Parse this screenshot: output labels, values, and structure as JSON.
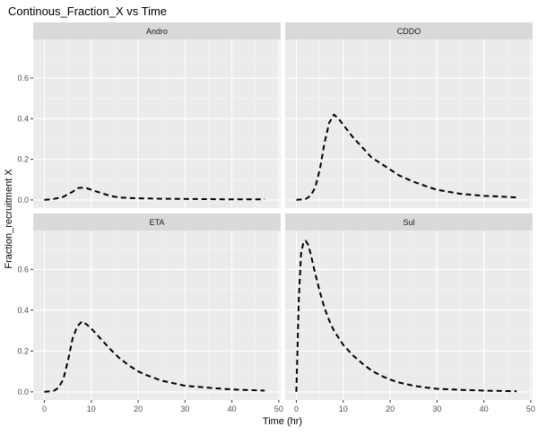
{
  "chart_data": {
    "type": "line",
    "title": "Continous_Fraction_X vs Time",
    "xlabel": "Time (hr)",
    "ylabel": "Fraction_recruitment X",
    "xlim": [
      -2.4,
      50.4
    ],
    "ylim": [
      -0.04,
      0.79
    ],
    "x_ticks": [
      0,
      10,
      20,
      30,
      40,
      50
    ],
    "y_ticks": [
      0.0,
      0.2,
      0.4,
      0.6
    ],
    "y_tick_labels": [
      "0.0",
      "0.2",
      "0.4",
      "0.6"
    ],
    "x_tick_labels": [
      "0",
      "10",
      "20",
      "30",
      "40",
      "50"
    ],
    "grid": true,
    "line_style": "dashed",
    "line_color": "#000000",
    "panel_background": "#ebebeb",
    "strip_background": "#d9d9d9",
    "facets": [
      {
        "name": "Andro",
        "x": [
          0,
          2,
          4,
          6,
          7,
          8,
          9,
          10,
          12,
          14,
          16,
          20,
          25,
          30,
          35,
          40,
          45,
          47
        ],
        "y": [
          0.0,
          0.005,
          0.015,
          0.04,
          0.058,
          0.06,
          0.058,
          0.05,
          0.035,
          0.02,
          0.012,
          0.008,
          0.006,
          0.005,
          0.004,
          0.003,
          0.003,
          0.003
        ]
      },
      {
        "name": "CDDO",
        "x": [
          0,
          2,
          3,
          4,
          5,
          6,
          7,
          8,
          9,
          10,
          12,
          14,
          16,
          18,
          20,
          22,
          25,
          28,
          30,
          35,
          40,
          45,
          47
        ],
        "y": [
          0.0,
          0.005,
          0.02,
          0.06,
          0.15,
          0.28,
          0.38,
          0.42,
          0.4,
          0.37,
          0.31,
          0.26,
          0.21,
          0.18,
          0.15,
          0.12,
          0.09,
          0.065,
          0.05,
          0.03,
          0.02,
          0.015,
          0.012
        ]
      },
      {
        "name": "ETA",
        "x": [
          0,
          2,
          3,
          4,
          5,
          6,
          7,
          8,
          9,
          10,
          12,
          14,
          16,
          18,
          20,
          22,
          25,
          28,
          30,
          35,
          40,
          45,
          47
        ],
        "y": [
          0.0,
          0.005,
          0.02,
          0.06,
          0.15,
          0.26,
          0.32,
          0.345,
          0.33,
          0.31,
          0.26,
          0.21,
          0.165,
          0.13,
          0.1,
          0.08,
          0.055,
          0.04,
          0.03,
          0.02,
          0.012,
          0.008,
          0.006
        ]
      },
      {
        "name": "Sul",
        "x": [
          0,
          0.5,
          1,
          1.5,
          2,
          2.5,
          3,
          4,
          5,
          6,
          7,
          8,
          10,
          12,
          14,
          16,
          18,
          20,
          22,
          25,
          28,
          30,
          35,
          40,
          45,
          47
        ],
        "y": [
          0.0,
          0.45,
          0.68,
          0.73,
          0.74,
          0.72,
          0.68,
          0.58,
          0.49,
          0.41,
          0.35,
          0.3,
          0.23,
          0.18,
          0.14,
          0.105,
          0.08,
          0.06,
          0.045,
          0.03,
          0.02,
          0.015,
          0.01,
          0.006,
          0.004,
          0.003
        ]
      }
    ]
  }
}
